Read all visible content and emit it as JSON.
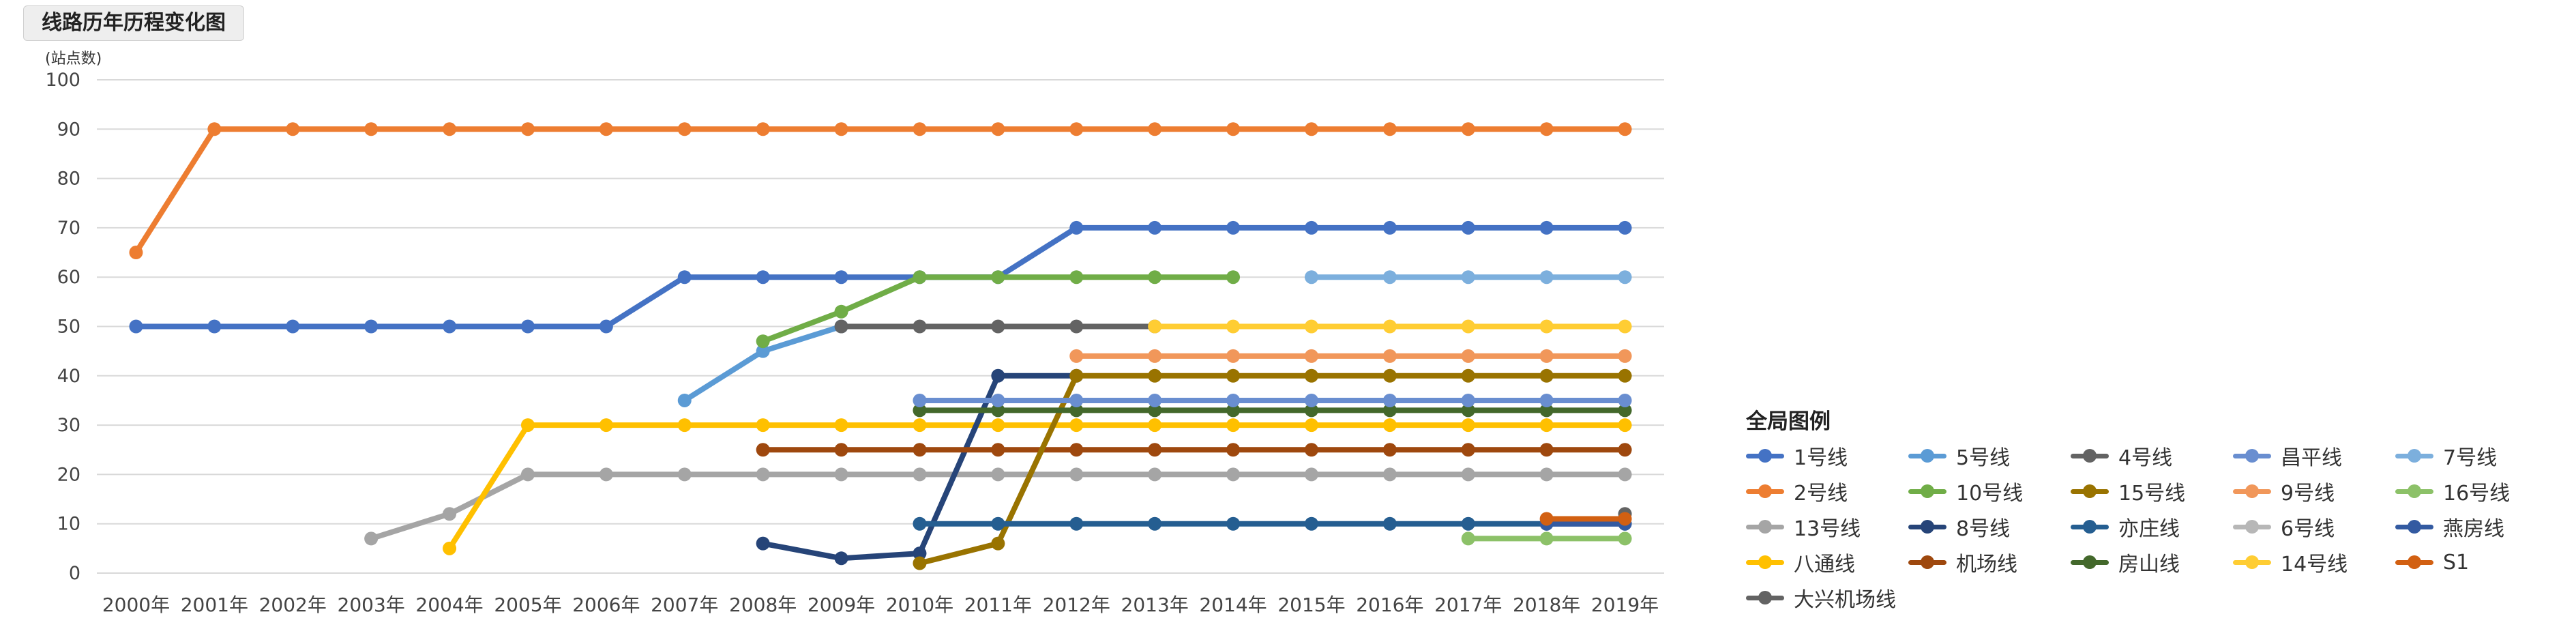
{
  "chart_data": {
    "type": "line",
    "title": "线路历年历程变化图",
    "ylabel": "(站点数)",
    "xlabel": "",
    "ylim": [
      0,
      100
    ],
    "yticks": [
      0,
      10,
      20,
      30,
      40,
      50,
      60,
      70,
      80,
      90,
      100
    ],
    "grid": true,
    "legend_title": "全局图例",
    "legend_position": "bottom-right",
    "categories": [
      "2000年",
      "2001年",
      "2002年",
      "2003年",
      "2004年",
      "2005年",
      "2006年",
      "2007年",
      "2008年",
      "2009年",
      "2010年",
      "2011年",
      "2012年",
      "2013年",
      "2014年",
      "2015年",
      "2016年",
      "2017年",
      "2018年",
      "2019年"
    ],
    "series": [
      {
        "name": "1号线",
        "color": "#4472c4",
        "values": [
          50,
          50,
          50,
          50,
          50,
          50,
          50,
          60,
          60,
          60,
          60,
          60,
          70,
          70,
          70,
          70,
          70,
          70,
          70,
          70
        ]
      },
      {
        "name": "2号线",
        "color": "#ed7d31",
        "values": [
          65,
          90,
          90,
          90,
          90,
          90,
          90,
          90,
          90,
          90,
          90,
          90,
          90,
          90,
          90,
          90,
          90,
          90,
          90,
          90
        ]
      },
      {
        "name": "13号线",
        "color": "#a5a5a5",
        "values": [
          null,
          null,
          null,
          7,
          12,
          20,
          20,
          20,
          20,
          20,
          20,
          20,
          20,
          20,
          20,
          20,
          20,
          20,
          20,
          20
        ]
      },
      {
        "name": "八通线",
        "color": "#ffc000",
        "values": [
          null,
          null,
          null,
          null,
          5,
          30,
          30,
          30,
          30,
          30,
          30,
          30,
          30,
          30,
          30,
          30,
          30,
          30,
          30,
          30
        ]
      },
      {
        "name": "5号线",
        "color": "#5b9bd5",
        "values": [
          null,
          null,
          null,
          null,
          null,
          null,
          null,
          35,
          45,
          50,
          null,
          null,
          null,
          null,
          null,
          null,
          null,
          null,
          null,
          null
        ]
      },
      {
        "name": "10号线",
        "color": "#70ad47",
        "values": [
          null,
          null,
          null,
          null,
          null,
          null,
          null,
          null,
          47,
          53,
          60,
          60,
          60,
          60,
          60,
          null,
          null,
          null,
          null,
          null
        ]
      },
      {
        "name": "8号线",
        "color": "#264478",
        "values": [
          null,
          null,
          null,
          null,
          null,
          null,
          null,
          null,
          6,
          3,
          4,
          40,
          40,
          null,
          null,
          null,
          null,
          null,
          null,
          null
        ]
      },
      {
        "name": "机场线",
        "color": "#9e480e",
        "values": [
          null,
          null,
          null,
          null,
          null,
          null,
          null,
          null,
          25,
          25,
          25,
          25,
          25,
          25,
          25,
          25,
          25,
          25,
          25,
          25
        ]
      },
      {
        "name": "大兴机场线",
        "color": "#636363",
        "values": [
          null,
          null,
          null,
          null,
          null,
          null,
          null,
          null,
          null,
          null,
          null,
          null,
          null,
          null,
          null,
          null,
          null,
          null,
          null,
          12
        ]
      },
      {
        "name": "4号线",
        "color": "#636363",
        "values": [
          null,
          null,
          null,
          null,
          null,
          null,
          null,
          null,
          null,
          50,
          50,
          50,
          50,
          50,
          null,
          null,
          null,
          null,
          null,
          null
        ]
      },
      {
        "name": "15号线",
        "color": "#997300",
        "values": [
          null,
          null,
          null,
          null,
          null,
          null,
          null,
          null,
          null,
          null,
          2,
          6,
          40,
          40,
          40,
          40,
          40,
          40,
          40,
          40
        ]
      },
      {
        "name": "亦庄线",
        "color": "#255e91",
        "values": [
          null,
          null,
          null,
          null,
          null,
          null,
          null,
          null,
          null,
          null,
          10,
          10,
          10,
          10,
          10,
          10,
          10,
          10,
          10,
          10
        ]
      },
      {
        "name": "房山线",
        "color": "#43682b",
        "values": [
          null,
          null,
          null,
          null,
          null,
          null,
          null,
          null,
          null,
          null,
          33,
          33,
          33,
          33,
          33,
          33,
          33,
          33,
          33,
          33
        ]
      },
      {
        "name": "昌平线",
        "color": "#698ed0",
        "values": [
          null,
          null,
          null,
          null,
          null,
          null,
          null,
          null,
          null,
          null,
          35,
          35,
          35,
          35,
          35,
          35,
          35,
          35,
          35,
          35
        ]
      },
      {
        "name": "9号线",
        "color": "#f1975a",
        "values": [
          null,
          null,
          null,
          null,
          null,
          null,
          null,
          null,
          null,
          null,
          null,
          null,
          44,
          44,
          44,
          44,
          44,
          44,
          44,
          44
        ]
      },
      {
        "name": "6号线",
        "color": "#b7b7b7",
        "values": [
          null,
          null,
          null,
          null,
          null,
          null,
          null,
          null,
          null,
          null,
          null,
          null,
          null,
          null,
          null,
          null,
          null,
          null,
          null,
          null
        ]
      },
      {
        "name": "14号线",
        "color": "#ffcd33",
        "values": [
          null,
          null,
          null,
          null,
          null,
          null,
          null,
          null,
          null,
          null,
          null,
          null,
          null,
          50,
          50,
          50,
          50,
          50,
          50,
          50
        ]
      },
      {
        "name": "7号线",
        "color": "#7cafdd",
        "values": [
          null,
          null,
          null,
          null,
          null,
          null,
          null,
          null,
          null,
          null,
          null,
          null,
          null,
          null,
          null,
          60,
          60,
          60,
          60,
          60
        ]
      },
      {
        "name": "16号线",
        "color": "#8cc168",
        "values": [
          null,
          null,
          null,
          null,
          null,
          null,
          null,
          null,
          null,
          null,
          null,
          null,
          null,
          null,
          null,
          null,
          null,
          7,
          7,
          7
        ]
      },
      {
        "name": "燕房线",
        "color": "#335aa1",
        "values": [
          null,
          null,
          null,
          null,
          null,
          null,
          null,
          null,
          null,
          null,
          null,
          null,
          null,
          null,
          null,
          null,
          null,
          null,
          10,
          10
        ]
      },
      {
        "name": "S1",
        "color": "#d26012",
        "values": [
          null,
          null,
          null,
          null,
          null,
          null,
          null,
          null,
          null,
          null,
          null,
          null,
          null,
          null,
          null,
          null,
          null,
          null,
          11,
          11
        ]
      }
    ],
    "legend_order": [
      "1号线",
      "5号线",
      "4号线",
      "昌平线",
      "7号线",
      "2号线",
      "10号线",
      "15号线",
      "9号线",
      "16号线",
      "13号线",
      "8号线",
      "亦庄线",
      "6号线",
      "燕房线",
      "八通线",
      "机场线",
      "房山线",
      "14号线",
      "S1",
      "大兴机场线"
    ]
  }
}
